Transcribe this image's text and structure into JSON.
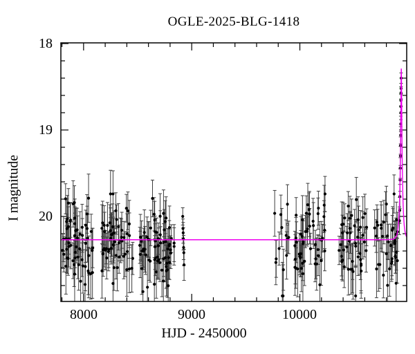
{
  "title": "OGLE-2025-BLG-1418",
  "axes": {
    "xlabel": "HJD - 2450000",
    "ylabel": "I magnitude",
    "x_tick_labels": [
      "8000",
      "9000",
      "10000"
    ],
    "y_tick_labels": [
      "18",
      "19",
      "20"
    ]
  },
  "colors": {
    "model_curve": "#EE00EE",
    "data_points": "#000000",
    "error_bars": "#3c3c3c",
    "frame": "#000000"
  },
  "chart_data": {
    "type": "scatter",
    "title": "OGLE-2025-BLG-1418",
    "xlabel": "HJD - 2450000",
    "ylabel": "I magnitude",
    "xlim": [
      7790,
      10988
    ],
    "ylim": [
      20.98,
      17.99
    ],
    "y_axis_inverted": true,
    "x_ticks_major": [
      8000,
      9000,
      10000
    ],
    "x_minor_step": 200,
    "y_ticks_major": [
      18,
      19,
      20
    ],
    "y_minor_step": 0.2,
    "grid": false,
    "legend": "none",
    "baseline_mag": 20.27,
    "seasonal_clusters": [
      {
        "name": "season-2017-18",
        "hjd_range": [
          7796,
          8090
        ],
        "n": 60,
        "mag_mean": 20.33,
        "mag_sigma": 0.22,
        "seed": 11
      },
      {
        "name": "season-2018",
        "hjd_range": [
          8161,
          8456
        ],
        "n": 55,
        "mag_mean": 20.3,
        "mag_sigma": 0.22,
        "seed": 22
      },
      {
        "name": "season-2019",
        "hjd_range": [
          8513,
          8840
        ],
        "n": 65,
        "mag_mean": 20.32,
        "mag_sigma": 0.23,
        "seed": 33
      },
      {
        "name": "season-2022a",
        "hjd_range": [
          9761,
          9902
        ],
        "n": 14,
        "mag_mean": 20.38,
        "mag_sigma": 0.27,
        "seed": 44
      },
      {
        "name": "season-2022b",
        "hjd_range": [
          9953,
          10235
        ],
        "n": 50,
        "mag_mean": 20.33,
        "mag_sigma": 0.23,
        "seed": 55
      },
      {
        "name": "season-2024",
        "hjd_range": [
          10344,
          10632
        ],
        "n": 45,
        "mag_mean": 20.3,
        "mag_sigma": 0.22,
        "seed": 66
      },
      {
        "name": "season-2025",
        "hjd_range": [
          10690,
          10914
        ],
        "n": 38,
        "mag_mean": 20.32,
        "mag_sigma": 0.23,
        "seed": 77
      }
    ],
    "isolated_points": [
      [
        8917,
        20.0,
        0.1
      ],
      [
        8919,
        20.14,
        0.11
      ],
      [
        8921,
        20.19,
        0.12
      ],
      [
        8923,
        20.26,
        0.13
      ],
      [
        8925,
        20.36,
        0.14
      ],
      [
        8927,
        20.42,
        0.15
      ],
      [
        8929,
        20.56,
        0.18
      ]
    ],
    "event_rise_points": [
      [
        10921.0,
        20.05,
        0.16
      ],
      [
        10923.0,
        19.93,
        0.15
      ],
      [
        10925.0,
        19.77,
        0.14
      ],
      [
        10927.0,
        19.58,
        0.13
      ],
      [
        10928.5,
        19.44,
        0.12
      ],
      [
        10930.0,
        19.3,
        0.11
      ],
      [
        10931.0,
        19.18,
        0.1
      ],
      [
        10932.0,
        19.06,
        0.1
      ],
      [
        10933.0,
        18.93,
        0.09
      ],
      [
        10934.0,
        18.8,
        0.08
      ],
      [
        10934.5,
        18.73,
        0.08
      ],
      [
        10935.0,
        18.66,
        0.07
      ],
      [
        10935.5,
        18.57,
        0.07
      ],
      [
        10936.0,
        18.52,
        0.06
      ],
      [
        10936.5,
        18.4,
        0.06
      ]
    ],
    "model": {
      "type": "microlensing-PSPL",
      "baseline_mag": 20.27,
      "t0": 10938,
      "tE": 20,
      "u0": 0.163,
      "peak_mag_approx": 18.3
    }
  },
  "layout_note": ""
}
